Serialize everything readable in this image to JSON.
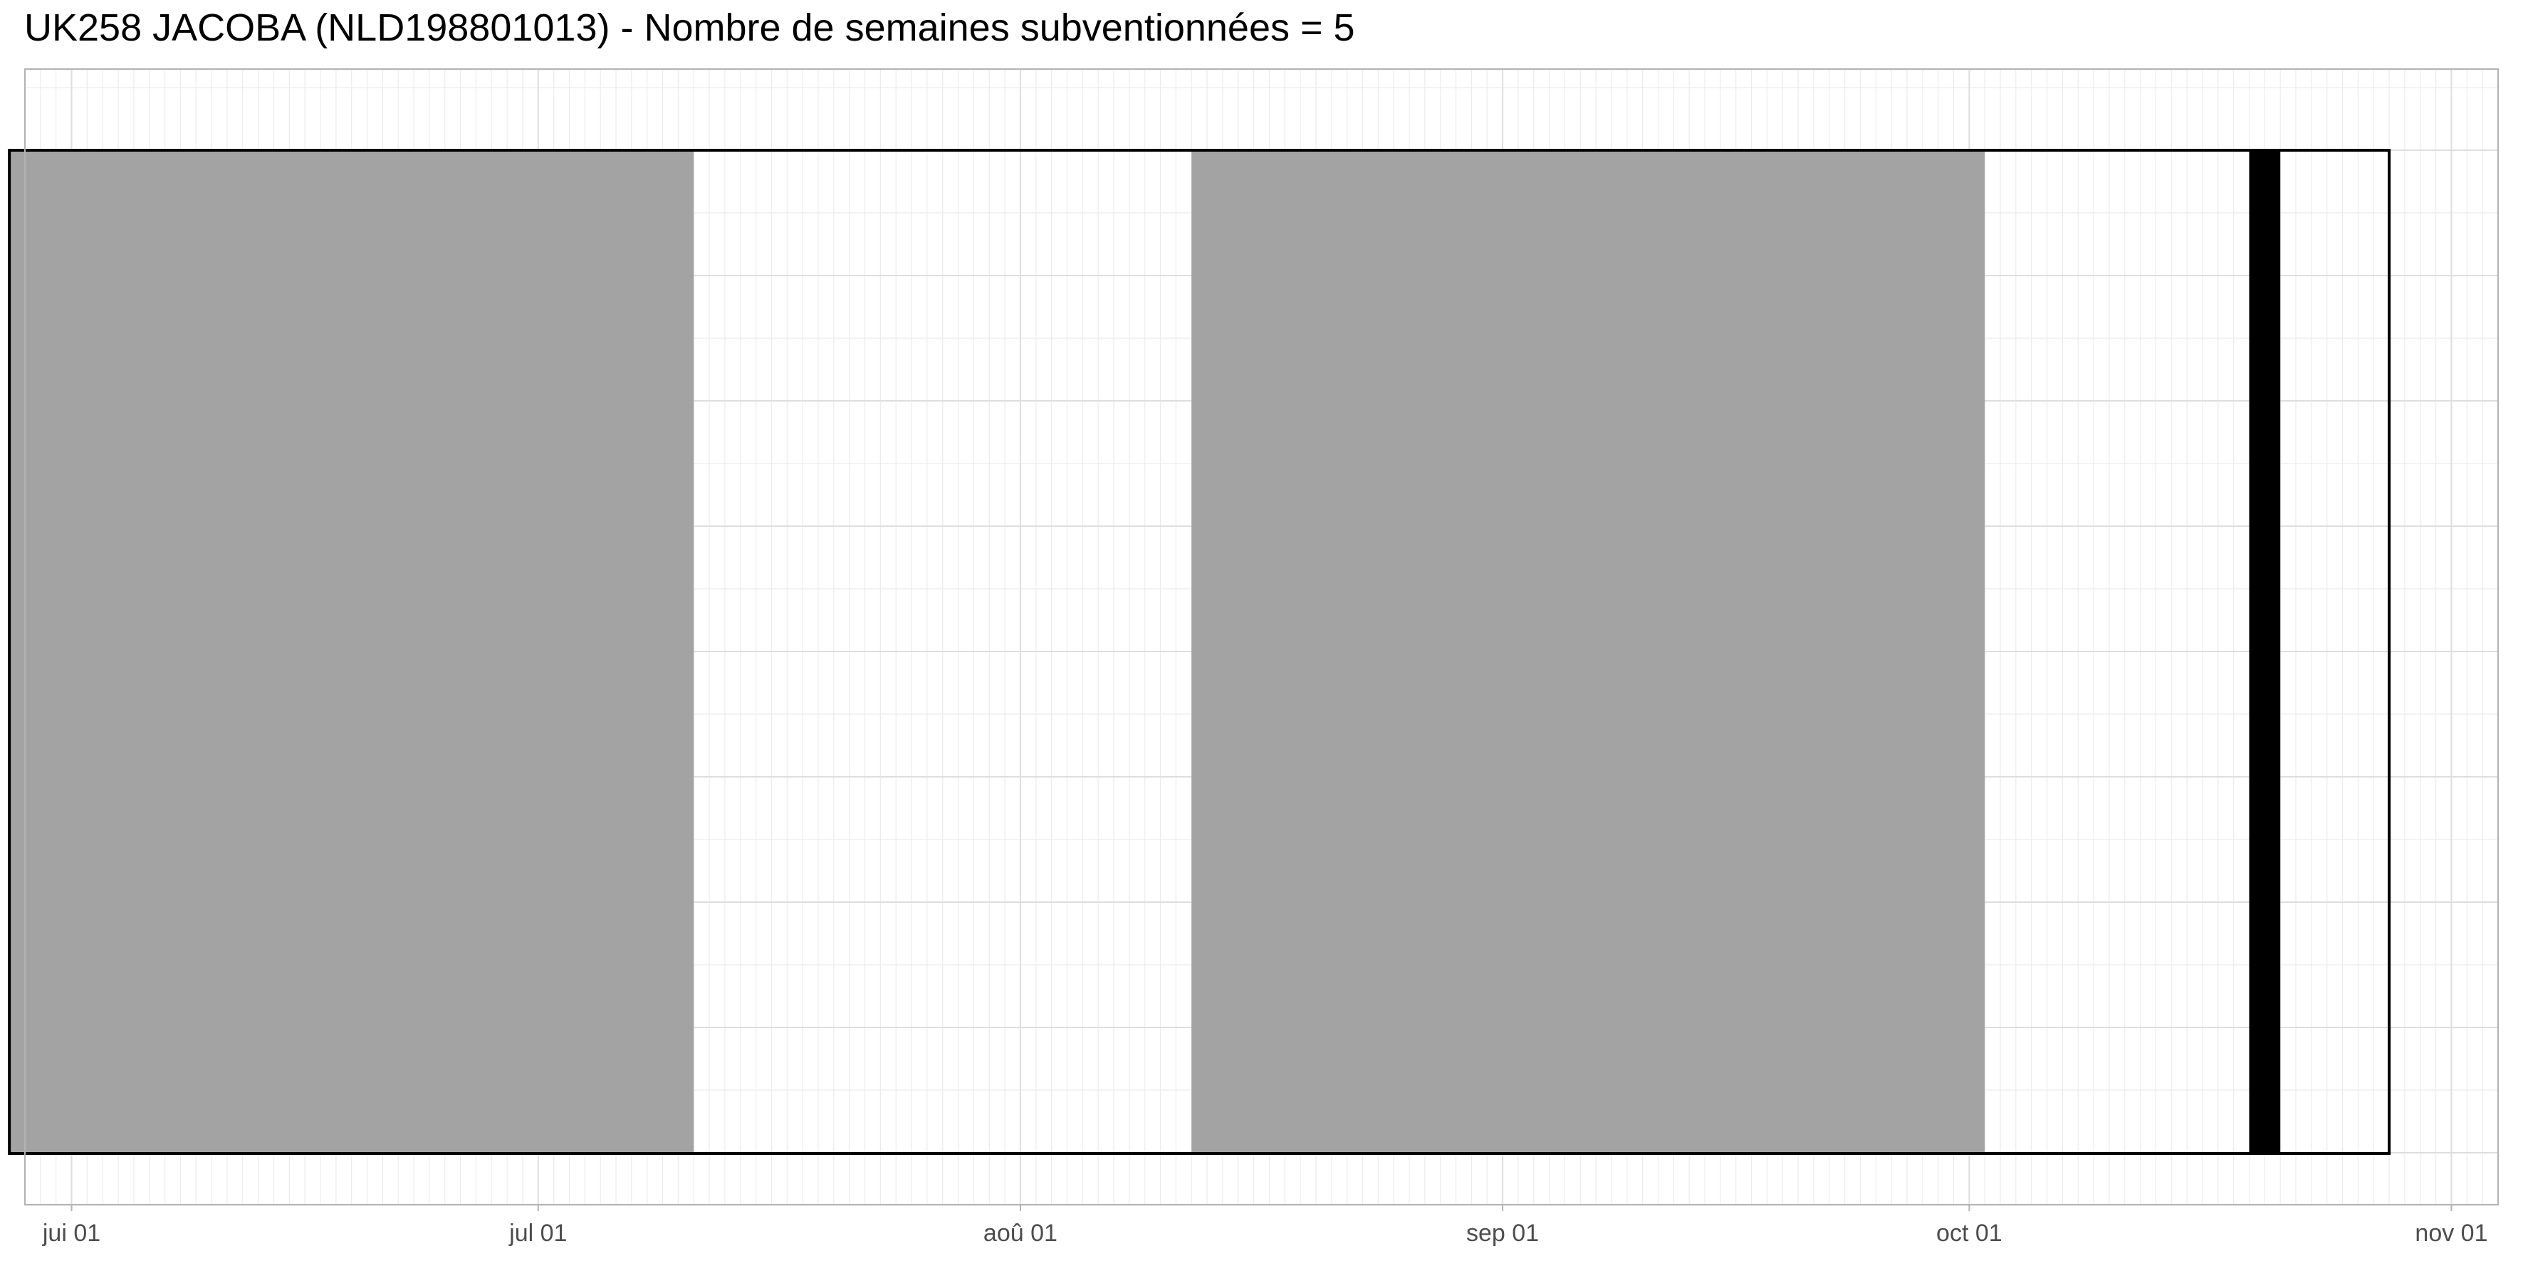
{
  "title": "UK258 JACOBA (NLD198801013) - Nombre de semaines subventionnées = 5",
  "chart_data": {
    "type": "timeline",
    "title": "UK258 JACOBA (NLD198801013) - Nombre de semaines subventionnées = 5",
    "xlabel": "",
    "ylabel": "",
    "x_axis": {
      "type": "date",
      "min": "2020-05-29",
      "max": "2020-11-04",
      "ticks": [
        {
          "date": "2020-06-01",
          "label": "jui 01"
        },
        {
          "date": "2020-07-01",
          "label": "jul 01"
        },
        {
          "date": "2020-08-01",
          "label": "aoû 01"
        },
        {
          "date": "2020-09-01",
          "label": "sep 01"
        },
        {
          "date": "2020-10-01",
          "label": "oct 01"
        },
        {
          "date": "2020-11-01",
          "label": "nov 01"
        }
      ]
    },
    "y_axis": {
      "labels_shown": false
    },
    "grid": true,
    "period": {
      "start": "2020-05-28",
      "end": "2020-10-28"
    },
    "segments": [
      {
        "start": "2020-05-28",
        "end": "2020-07-11",
        "category": "gray"
      },
      {
        "start": "2020-08-12",
        "end": "2020-10-02",
        "category": "gray"
      },
      {
        "start": "2020-10-19",
        "end": "2020-10-21",
        "category": "black"
      }
    ],
    "colors": {
      "gray": "#a3a3a3",
      "black": "#000000",
      "outline": "#000000",
      "panel_border": "#b3b3b3",
      "grid_major": "#dedede",
      "grid_minor": "#ececec"
    }
  }
}
